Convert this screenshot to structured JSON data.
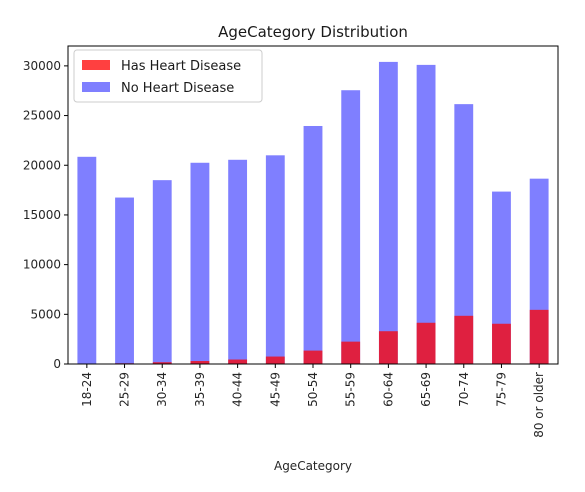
{
  "chart_data": {
    "type": "bar",
    "title": "AgeCategory Distribution",
    "xlabel": "AgeCategory",
    "ylabel": "",
    "ylim": [
      0,
      32000
    ],
    "yticks": [
      0,
      5000,
      10000,
      15000,
      20000,
      25000,
      30000
    ],
    "categories": [
      "18-24",
      "25-29",
      "30-34",
      "35-39",
      "40-44",
      "45-49",
      "50-54",
      "55-59",
      "60-64",
      "65-69",
      "70-74",
      "75-79",
      "80 or older"
    ],
    "series": [
      {
        "name": "Has Heart Disease",
        "color": "#ff0000",
        "opacity": 0.75,
        "values": [
          40,
          70,
          180,
          300,
          450,
          750,
          1350,
          2250,
          3300,
          4150,
          4850,
          4050,
          5450
        ]
      },
      {
        "name": "No Heart Disease",
        "color": "#0000ff",
        "opacity": 0.5,
        "values": [
          20850,
          16750,
          18500,
          20250,
          20550,
          21000,
          23950,
          27550,
          30400,
          30100,
          26150,
          17350,
          18650
        ]
      }
    ],
    "overlay": true,
    "legend_position": "top-left",
    "grid": false
  }
}
